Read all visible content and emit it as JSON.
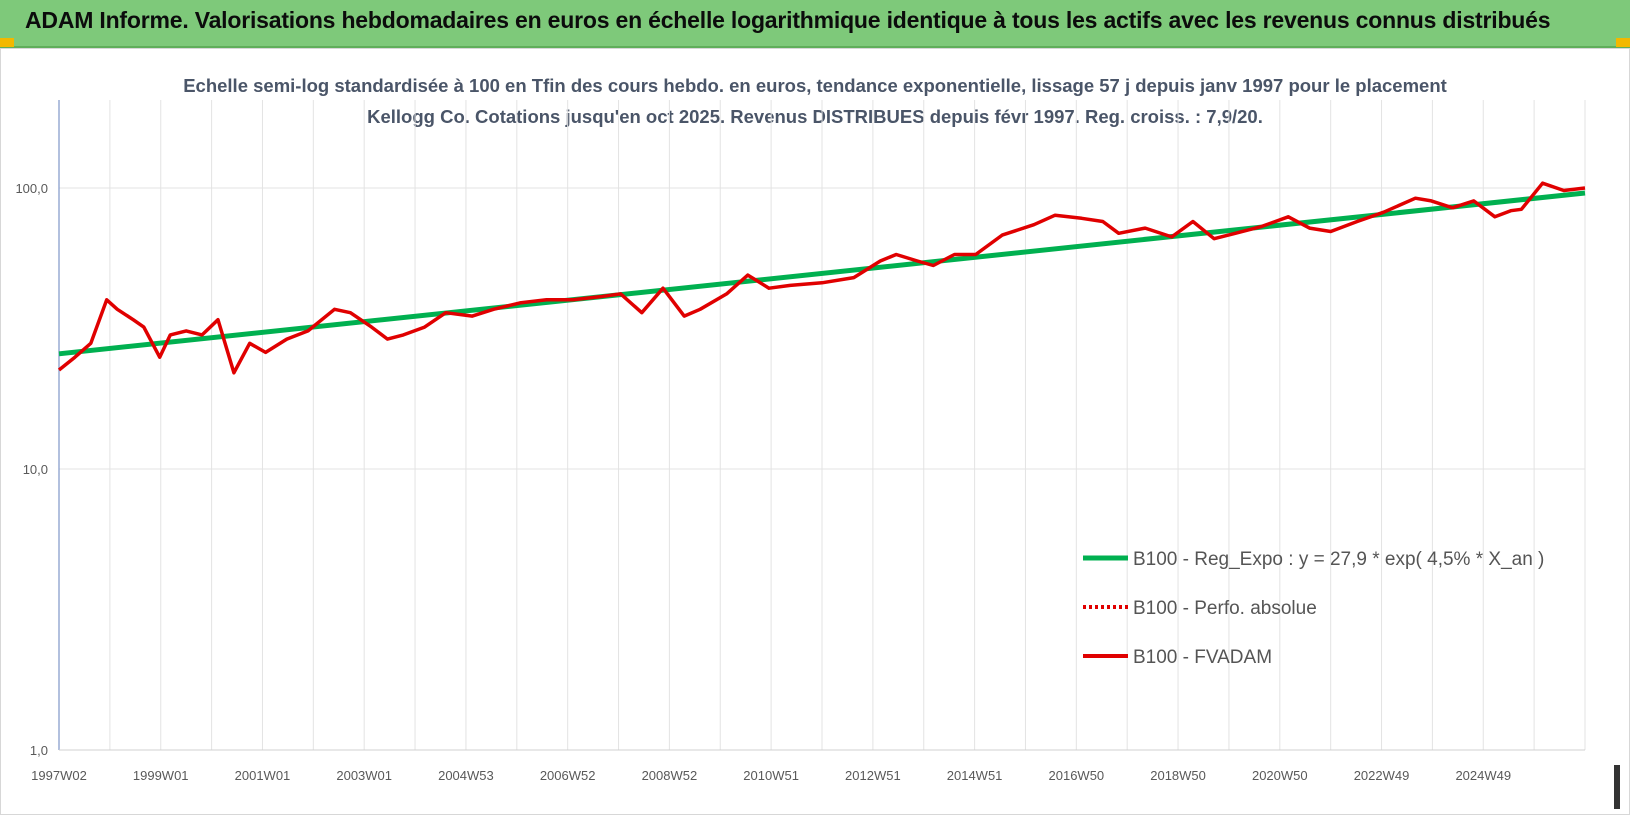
{
  "header": {
    "title": "ADAM Informe. Valorisations hebdomadaires en euros en échelle logarithmique identique à tous les actifs avec les revenus connus distribués"
  },
  "chart_data": {
    "type": "line",
    "title": "Echelle semi-log standardisée à 100 en Tfin des cours hebdo. en euros, tendance exponentielle, lissage 57 j depuis janv 1997 pour le placement Kellogg Co. Cotations jusqu'en oct 2025. Revenus DISTRIBUES depuis févr 1997. Reg. croiss. : 7,9/20.",
    "y_scale": "log",
    "ylim": [
      1,
      200
    ],
    "yticks": [
      1,
      10,
      100
    ],
    "ytick_labels": [
      "1,0",
      "10,0",
      "100,0"
    ],
    "x_range": [
      1997.0,
      2025.8
    ],
    "xtick_labels": [
      "1997W02",
      "1999W01",
      "2001W01",
      "2003W01",
      "2004W53",
      "2006W52",
      "2008W52",
      "2010W51",
      "2012W51",
      "2014W51",
      "2016W50",
      "2018W50",
      "2020W50",
      "2022W49",
      "2024W49"
    ],
    "grid": "vertical",
    "legend_position": "right",
    "series": [
      {
        "name": "B100 - Reg_Expo : y = 27,9 * exp( 4,5% *  X_an )",
        "color": "#00b050",
        "style": "solid",
        "x": [
          1997.0,
          2025.8
        ],
        "y": [
          25.7,
          96.0
        ]
      },
      {
        "name": "B100 - Perfo. absolue",
        "color": "#e00000",
        "style": "dotted",
        "x": [],
        "y": []
      },
      {
        "name": "B100 - FVADAM",
        "color": "#e00000",
        "style": "solid",
        "x": [
          1997.0,
          1997.3,
          1997.6,
          1997.9,
          1998.1,
          1998.4,
          1998.6,
          1998.9,
          1999.1,
          1999.4,
          1999.7,
          2000.0,
          2000.3,
          2000.6,
          2000.9,
          2001.3,
          2001.7,
          2002.2,
          2002.5,
          2002.9,
          2003.2,
          2003.5,
          2003.9,
          2004.3,
          2004.8,
          2005.2,
          2005.7,
          2006.2,
          2006.7,
          2007.2,
          2007.6,
          2008.0,
          2008.4,
          2008.8,
          2009.1,
          2009.6,
          2010.0,
          2010.4,
          2010.8,
          2011.4,
          2012.0,
          2012.5,
          2012.8,
          2013.2,
          2013.5,
          2013.9,
          2014.3,
          2014.8,
          2015.4,
          2015.8,
          2016.3,
          2016.7,
          2017.0,
          2017.5,
          2018.0,
          2018.4,
          2018.8,
          2019.2,
          2019.7,
          2020.2,
          2020.6,
          2021.0,
          2021.5,
          2022.0,
          2022.6,
          2022.9,
          2023.3,
          2023.7,
          2024.1,
          2024.4,
          2024.6,
          2025.0,
          2025.4,
          2025.8
        ],
        "y": [
          22.5,
          25.0,
          28.0,
          40.0,
          37.0,
          34.0,
          32.0,
          25.0,
          30.0,
          31.0,
          30.0,
          34.0,
          22.0,
          28.0,
          26.0,
          29.0,
          31.0,
          37.0,
          36.0,
          32.0,
          29.0,
          30.0,
          32.0,
          36.0,
          35.0,
          37.0,
          39.0,
          40.0,
          40.0,
          41.0,
          42.0,
          36.0,
          44.0,
          35.0,
          37.0,
          42.0,
          49.0,
          44.0,
          45.0,
          46.0,
          48.0,
          55.0,
          58.0,
          55.0,
          53.0,
          58.0,
          58.0,
          68.0,
          74.0,
          80.0,
          78.0,
          76.0,
          69.0,
          72.0,
          67.0,
          76.0,
          66.0,
          69.0,
          73.0,
          79.0,
          72.0,
          70.0,
          76.0,
          82.0,
          92.0,
          90.0,
          85.0,
          90.0,
          79.0,
          83.0,
          84.0,
          104.0,
          98.0,
          100.0
        ]
      }
    ]
  }
}
